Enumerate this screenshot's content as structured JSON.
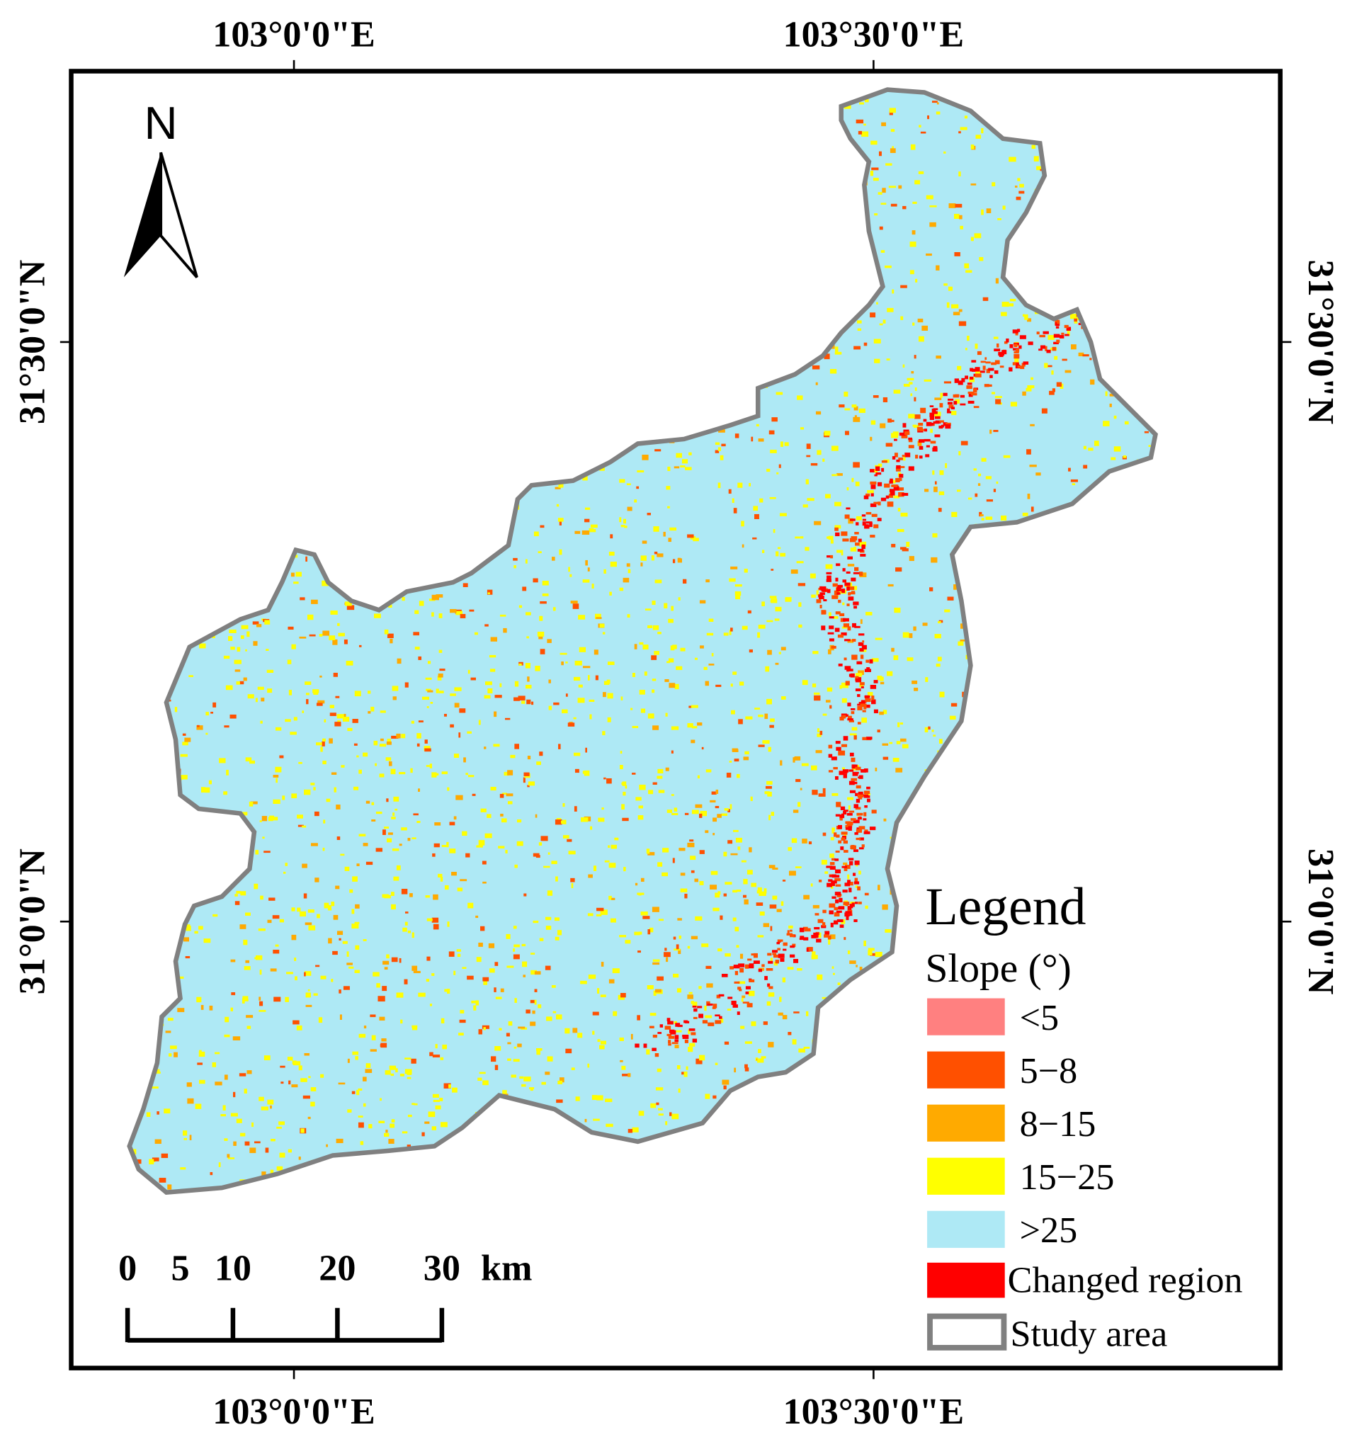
{
  "map": {
    "graticule": {
      "top": [
        "103°0'0\"E",
        "103°30'0\"E"
      ],
      "bottom": [
        "103°0'0\"E",
        "103°30'0\"E"
      ],
      "left": [
        "31°30'0\"N",
        "31°0'0\"N"
      ],
      "right": [
        "31°30'0\"N",
        "31°0'0\"N"
      ]
    },
    "north": "N",
    "scale_bar": {
      "labels": [
        "0",
        "5",
        "10",
        "20",
        "30"
      ],
      "unit": "km"
    },
    "legend": {
      "title": "Legend",
      "subtitle": "Slope (°)",
      "items": [
        {
          "label": "<5",
          "color": "#ff8080"
        },
        {
          "label": "5−8",
          "color": "#ff5000"
        },
        {
          "label": "8−15",
          "color": "#ffaa00"
        },
        {
          "label": "15−25",
          "color": "#ffff00"
        },
        {
          "label": ">25",
          "color": "#aee9f5"
        }
      ],
      "changed_region": {
        "label": "Changed region",
        "color": "#ff0000"
      },
      "study_area": {
        "label": "Study area",
        "color": "#808080"
      }
    }
  }
}
